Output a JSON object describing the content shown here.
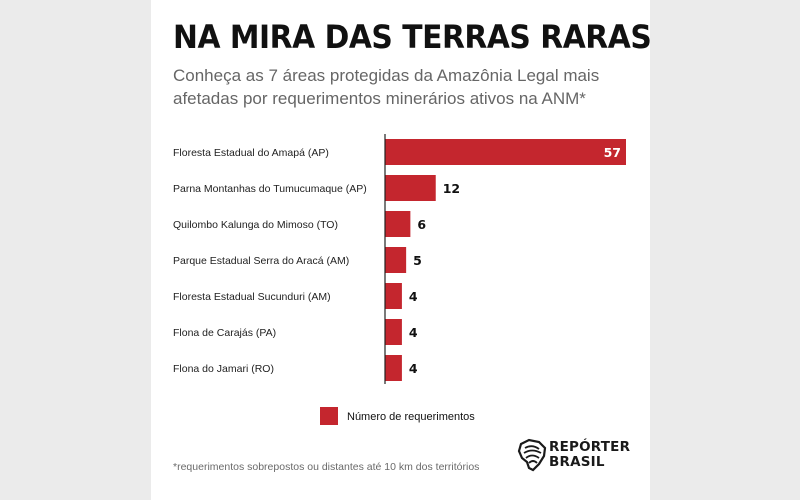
{
  "title": "NA MIRA DAS TERRAS RARAS",
  "subtitle": "Conheça as 7 áreas protegidas da Amazônia Legal mais afetadas por requerimentos minerários ativos na ANM*",
  "footnote": "*requerimentos sobrepostos ou distantes até 10 km dos territórios",
  "brand": {
    "line1": "REPÓRTER",
    "line2": "BRASIL"
  },
  "colors": {
    "bar": "#c4262e",
    "axis": "#222222",
    "text": "#222222",
    "background": "#ebebeb"
  },
  "chart_data": {
    "type": "bar",
    "orientation": "horizontal",
    "categories": [
      "Floresta Estadual do Amapá (AP)",
      "Parna Montanhas do Tumucumaque (AP)",
      "Quilombo Kalunga do Mimoso (TO)",
      "Parque Estadual Serra do Aracá (AM)",
      "Floresta Estadual Sucunduri (AM)",
      "Flona de Carajás (PA)",
      "Flona do Jamari (RO)"
    ],
    "series": [
      {
        "name": "Número de requerimentos",
        "values": [
          57,
          12,
          6,
          5,
          4,
          4,
          4
        ]
      }
    ],
    "xlim": [
      0,
      57
    ],
    "data_labels": true,
    "grid": false,
    "legend": "bottom"
  }
}
